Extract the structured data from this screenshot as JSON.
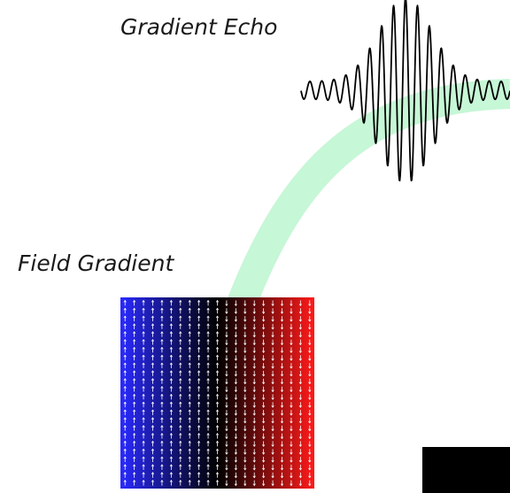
{
  "labels": {
    "echo": "Gradient Echo",
    "gradient": "Field Gradient"
  },
  "colors": {
    "arc": "#c6f7d6",
    "waveform": "#000000",
    "gradient_start": "#2a2aff",
    "gradient_middle": "#000000",
    "gradient_end": "#ff1a1a",
    "spin_arrow": "#ffffff",
    "corner_block": "#000000"
  },
  "spin_arrows": {
    "left_half": "up",
    "right_half": "down"
  }
}
